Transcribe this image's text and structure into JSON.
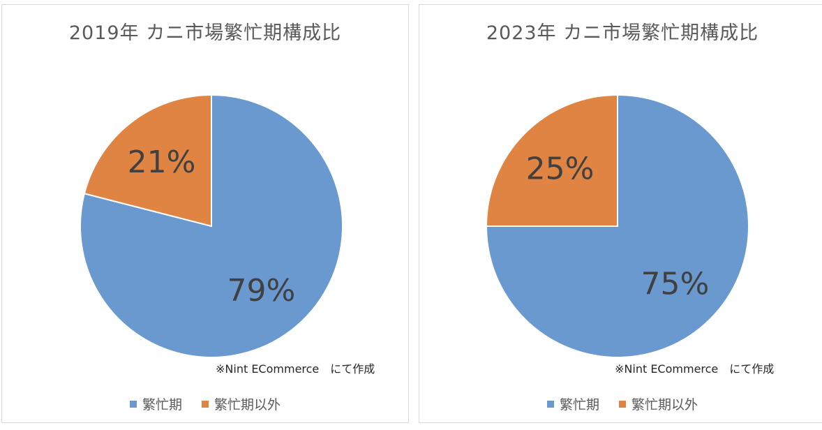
{
  "chart_data": [
    {
      "type": "pie",
      "title": "2019年 カニ市場繁忙期構成比",
      "categories": [
        "繁忙期",
        "繁忙期以外"
      ],
      "values": [
        79,
        21
      ],
      "labels": [
        "79%",
        "21%"
      ],
      "colors": [
        "#6a99d0",
        "#e08443"
      ],
      "legend": "bottom",
      "note": "※Nint ECommerce　にて作成"
    },
    {
      "type": "pie",
      "title": "2023年 カニ市場繁忙期構成比",
      "categories": [
        "繁忙期",
        "繁忙期以外"
      ],
      "values": [
        75,
        25
      ],
      "labels": [
        "75%",
        "25%"
      ],
      "colors": [
        "#6a99d0",
        "#e08443"
      ],
      "legend": "bottom",
      "note": "※Nint ECommerce　にて作成"
    }
  ]
}
